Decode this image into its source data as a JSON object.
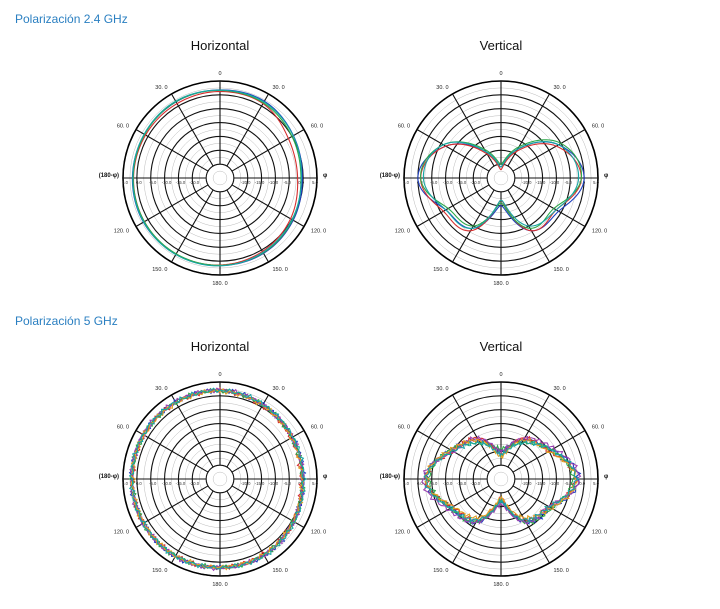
{
  "sections": [
    {
      "title": "Polarización 2.4 GHz",
      "charts": [
        {
          "title": "Horizontal",
          "chart_data": {
            "type": "polar",
            "title": "Horizontal",
            "angle_labels": [
              "0",
              "30. 0",
              "60. 0",
              "φ",
              "120. 0",
              "150. 0",
              "180. 0",
              "150. 0",
              "120. 0",
              "(180-φ)",
              "60. 0",
              "30. 0"
            ],
            "left_label": "(180-φ)",
            "right_label": "φ",
            "ring_ticks": [
              "5.0",
              "0.0",
              "-5.0",
              "-10.0",
              "-15.0",
              "-20.0"
            ],
            "rlim": [
              -30,
              5
            ],
            "pattern": "omni",
            "series": [
              {
                "color": "#1f3fbf",
                "angles_deg": [
                  0,
                  30,
                  60,
                  90,
                  120,
                  150,
                  180,
                  210,
                  240,
                  270,
                  300,
                  330
                ],
                "gain_db": [
                  1.8,
                  2.0,
                  0.6,
                  -0.3,
                  0.5,
                  1.4,
                  1.6,
                  1.8,
                  1.9,
                  1.6,
                  1.5,
                  1.7
                ]
              },
              {
                "color": "#d62f2f",
                "angles_deg": [
                  0,
                  30,
                  60,
                  90,
                  120,
                  150,
                  180,
                  210,
                  240,
                  270,
                  300,
                  330
                ],
                "gain_db": [
                  1.2,
                  1.0,
                  -1.5,
                  -2.0,
                  -0.6,
                  0.6,
                  1.4,
                  1.7,
                  1.5,
                  1.2,
                  1.0,
                  1.0
                ]
              },
              {
                "color": "#2ea84a",
                "angles_deg": [
                  0,
                  30,
                  60,
                  90,
                  120,
                  150,
                  180,
                  210,
                  240,
                  270,
                  300,
                  330
                ],
                "gain_db": [
                  1.6,
                  1.3,
                  0.0,
                  -0.8,
                  0.2,
                  1.2,
                  1.5,
                  1.6,
                  1.5,
                  1.3,
                  1.4,
                  1.8
                ]
              },
              {
                "color": "#17a5a5",
                "angles_deg": [
                  0,
                  30,
                  60,
                  90,
                  120,
                  150,
                  180,
                  210,
                  240,
                  270,
                  300,
                  330
                ],
                "gain_db": [
                  1.7,
                  1.7,
                  0.5,
                  -0.6,
                  0.0,
                  1.0,
                  1.7,
                  1.9,
                  1.8,
                  1.5,
                  1.6,
                  2.0
                ]
              }
            ]
          }
        },
        {
          "title": "Vertical",
          "chart_data": {
            "type": "polar",
            "title": "Vertical",
            "angle_labels": [
              "0",
              "30. 0",
              "60. 0",
              "φ",
              "120. 0",
              "150. 0",
              "180. 0",
              "150. 0",
              "120. 0",
              "(180-φ)",
              "60. 0",
              "30. 0"
            ],
            "left_label": "(180-φ)",
            "right_label": "φ",
            "ring_ticks": [
              "5.0",
              "0.0",
              "-5.0",
              "-10.0",
              "-15.0",
              "-20.0"
            ],
            "rlim": [
              -30,
              5
            ],
            "pattern": "figure8",
            "series": [
              {
                "color": "#1f3fbf",
                "angles_deg": [
                  0,
                  30,
                  60,
                  90,
                  120,
                  150,
                  180,
                  210,
                  240,
                  270,
                  300,
                  330
                ],
                "gain_db": [
                  -26,
                  -18,
                  -6,
                  0,
                  -6,
                  -8,
                  -20,
                  -9,
                  -7,
                  0,
                  -7,
                  -19
                ]
              },
              {
                "color": "#d62f2f",
                "angles_deg": [
                  0,
                  30,
                  60,
                  90,
                  120,
                  150,
                  180,
                  210,
                  240,
                  270,
                  300,
                  330
                ],
                "gain_db": [
                  -27,
                  -19,
                  -7,
                  -1,
                  -7,
                  -8,
                  -22,
                  -8,
                  -6,
                  -1,
                  -7,
                  -20
                ]
              },
              {
                "color": "#2ea84a",
                "angles_deg": [
                  0,
                  30,
                  60,
                  90,
                  120,
                  150,
                  180,
                  210,
                  240,
                  270,
                  300,
                  330
                ],
                "gain_db": [
                  -25,
                  -17,
                  -5,
                  -1,
                  -8,
                  -9,
                  -21,
                  -10,
                  -8,
                  -1,
                  -6,
                  -18
                ]
              },
              {
                "color": "#17a5a5",
                "angles_deg": [
                  0,
                  30,
                  60,
                  90,
                  120,
                  150,
                  180,
                  210,
                  240,
                  270,
                  300,
                  330
                ],
                "gain_db": [
                  -26,
                  -18,
                  -6,
                  -2,
                  -7,
                  -10,
                  -22,
                  -9,
                  -7,
                  -2,
                  -6,
                  -19
                ]
              }
            ]
          }
        }
      ]
    },
    {
      "title": "Polarización 5 GHz",
      "charts": [
        {
          "title": "Horizontal",
          "chart_data": {
            "type": "polar",
            "title": "Horizontal",
            "angle_labels": [
              "0",
              "30. 0",
              "60. 0",
              "φ",
              "120. 0",
              "150. 0",
              "180. 0",
              "150. 0",
              "120. 0",
              "(180-φ)",
              "60. 0",
              "30. 0"
            ],
            "left_label": "(180-φ)",
            "right_label": "φ",
            "ring_ticks": [
              "5.0",
              "0.0",
              "-5.0",
              "-10.0",
              "-15.0",
              "-20.0"
            ],
            "rlim": [
              -30,
              5
            ],
            "pattern": "omni-noisy",
            "series": [
              {
                "color": "#1f3fbf",
                "angles_deg": [
                  0,
                  30,
                  60,
                  90,
                  120,
                  150,
                  180,
                  210,
                  240,
                  270,
                  300,
                  330
                ],
                "gain_db": [
                  2.0,
                  1.0,
                  0.2,
                  0.0,
                  0.8,
                  1.8,
                  2.0,
                  2.2,
                  2.0,
                  1.8,
                  1.9,
                  2.0
                ]
              },
              {
                "color": "#d62f2f",
                "angles_deg": [
                  0,
                  30,
                  60,
                  90,
                  120,
                  150,
                  180,
                  210,
                  240,
                  270,
                  300,
                  330
                ],
                "gain_db": [
                  1.8,
                  0.6,
                  -0.4,
                  -0.6,
                  0.4,
                  1.4,
                  1.8,
                  2.0,
                  1.8,
                  1.6,
                  1.7,
                  1.8
                ]
              },
              {
                "color": "#2ea84a",
                "angles_deg": [
                  0,
                  30,
                  60,
                  90,
                  120,
                  150,
                  180,
                  210,
                  240,
                  270,
                  300,
                  330
                ],
                "gain_db": [
                  1.9,
                  0.8,
                  0.0,
                  -0.3,
                  0.6,
                  1.6,
                  1.9,
                  2.1,
                  1.9,
                  1.7,
                  1.8,
                  1.9
                ]
              },
              {
                "color": "#9a3fb0",
                "angles_deg": [
                  0,
                  30,
                  60,
                  90,
                  120,
                  150,
                  180,
                  210,
                  240,
                  270,
                  300,
                  330
                ],
                "gain_db": [
                  2.1,
                  0.9,
                  0.1,
                  -0.2,
                  0.7,
                  1.7,
                  2.1,
                  2.2,
                  2.0,
                  1.8,
                  2.0,
                  2.1
                ]
              },
              {
                "color": "#e0a020",
                "angles_deg": [
                  0,
                  30,
                  60,
                  90,
                  120,
                  150,
                  180,
                  210,
                  240,
                  270,
                  300,
                  330
                ],
                "gain_db": [
                  1.7,
                  0.7,
                  -0.2,
                  -0.4,
                  0.5,
                  1.5,
                  1.8,
                  2.0,
                  1.8,
                  1.6,
                  1.7,
                  1.7
                ]
              },
              {
                "color": "#17a5a5",
                "angles_deg": [
                  0,
                  30,
                  60,
                  90,
                  120,
                  150,
                  180,
                  210,
                  240,
                  270,
                  300,
                  330
                ],
                "gain_db": [
                  2.0,
                  1.1,
                  0.3,
                  0.1,
                  0.9,
                  1.9,
                  2.0,
                  2.1,
                  1.9,
                  1.8,
                  1.9,
                  2.0
                ]
              }
            ]
          }
        },
        {
          "title": "Vertical",
          "chart_data": {
            "type": "polar",
            "title": "Vertical",
            "angle_labels": [
              "0",
              "30. 0",
              "60. 0",
              "φ",
              "120. 0",
              "150. 0",
              "180. 0",
              "150. 0",
              "120. 0",
              "(180-φ)",
              "60. 0",
              "30. 0"
            ],
            "left_label": "(180-φ)",
            "right_label": "φ",
            "ring_ticks": [
              "5.0",
              "0.0",
              "-5.0",
              "-10.0",
              "-15.0",
              "-20.0"
            ],
            "rlim": [
              -30,
              5
            ],
            "pattern": "figure8-multilobe",
            "series": [
              {
                "color": "#1f3fbf",
                "angles_deg": [
                  0,
                  30,
                  60,
                  90,
                  120,
                  150,
                  180,
                  210,
                  240,
                  270,
                  300,
                  330
                ],
                "gain_db": [
                  -20,
                  -14,
                  -9,
                  -2,
                  -9,
                  -12,
                  -22,
                  -12,
                  -9,
                  -3,
                  -9,
                  -14
                ]
              },
              {
                "color": "#d62f2f",
                "angles_deg": [
                  0,
                  30,
                  60,
                  90,
                  120,
                  150,
                  180,
                  210,
                  240,
                  270,
                  300,
                  330
                ],
                "gain_db": [
                  -21,
                  -13,
                  -10,
                  -3,
                  -10,
                  -13,
                  -23,
                  -13,
                  -10,
                  -3,
                  -10,
                  -13
                ]
              },
              {
                "color": "#2ea84a",
                "angles_deg": [
                  0,
                  30,
                  60,
                  90,
                  120,
                  150,
                  180,
                  210,
                  240,
                  270,
                  300,
                  330
                ],
                "gain_db": [
                  -19,
                  -15,
                  -9,
                  -4,
                  -9,
                  -12,
                  -22,
                  -12,
                  -9,
                  -4,
                  -9,
                  -15
                ]
              },
              {
                "color": "#9a3fb0",
                "angles_deg": [
                  0,
                  30,
                  60,
                  90,
                  120,
                  150,
                  180,
                  210,
                  240,
                  270,
                  300,
                  330
                ],
                "gain_db": [
                  -20,
                  -13,
                  -8,
                  -2,
                  -10,
                  -12,
                  -21,
                  -12,
                  -8,
                  -2,
                  -10,
                  -13
                ]
              },
              {
                "color": "#e0a020",
                "angles_deg": [
                  0,
                  30,
                  60,
                  90,
                  120,
                  150,
                  180,
                  210,
                  240,
                  270,
                  300,
                  330
                ],
                "gain_db": [
                  -22,
                  -14,
                  -10,
                  -3,
                  -9,
                  -14,
                  -23,
                  -14,
                  -10,
                  -3,
                  -9,
                  -14
                ]
              },
              {
                "color": "#17a5a5",
                "angles_deg": [
                  0,
                  30,
                  60,
                  90,
                  120,
                  150,
                  180,
                  210,
                  240,
                  270,
                  300,
                  330
                ],
                "gain_db": [
                  -21,
                  -15,
                  -9,
                  -3,
                  -10,
                  -13,
                  -22,
                  -13,
                  -9,
                  -3,
                  -10,
                  -15
                ]
              }
            ]
          }
        }
      ]
    }
  ]
}
